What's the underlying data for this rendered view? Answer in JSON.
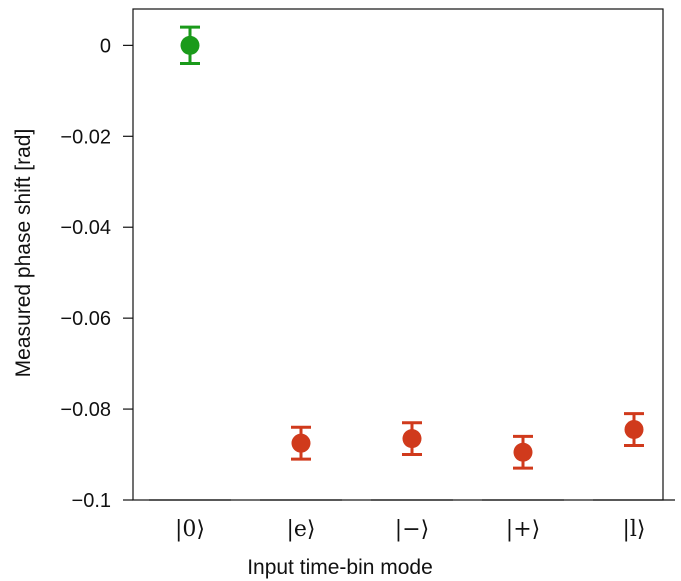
{
  "chart_data": {
    "type": "scatter",
    "xlabel": "Input time-bin mode",
    "ylabel": "Measured phase shift [rad]",
    "ylim": [
      -0.1,
      0.008
    ],
    "yticks": [
      0,
      -0.02,
      -0.04,
      -0.06,
      -0.08,
      -0.1
    ],
    "ytick_labels": [
      "0",
      "−0.02",
      "−0.04",
      "−0.06",
      "−0.08",
      "−0.1"
    ],
    "categories": [
      "|0⟩",
      "|e⟩",
      "|−⟩",
      "|+⟩",
      "|l⟩"
    ],
    "points": [
      {
        "category": "|0⟩",
        "value": 0.0,
        "error": 0.004,
        "color": "#1a9a1a"
      },
      {
        "category": "|e⟩",
        "value": -0.0875,
        "error": 0.0035,
        "color": "#d03a1c"
      },
      {
        "category": "|−⟩",
        "value": -0.0865,
        "error": 0.0035,
        "color": "#d03a1c"
      },
      {
        "category": "|+⟩",
        "value": -0.0895,
        "error": 0.0035,
        "color": "#d03a1c"
      },
      {
        "category": "|l⟩",
        "value": -0.0845,
        "error": 0.0035,
        "color": "#d03a1c"
      }
    ],
    "grid": false,
    "legend": "none"
  }
}
